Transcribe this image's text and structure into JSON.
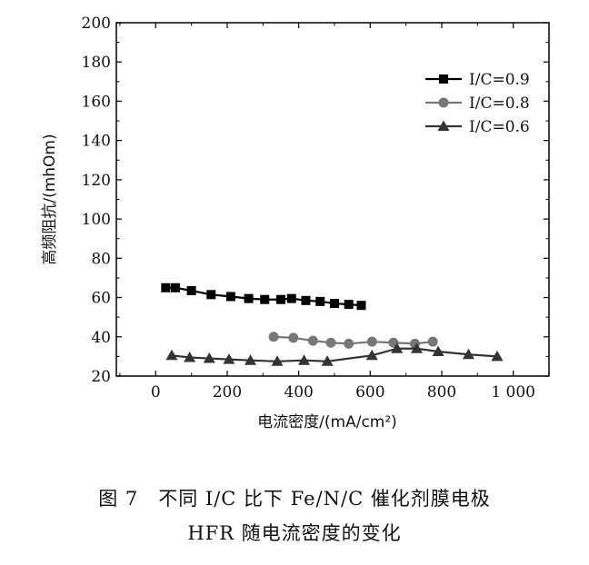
{
  "chart_data": {
    "type": "line",
    "xlabel": "电流密度/(mA/cm²)",
    "ylabel": "高频阻抗/(mhOm)",
    "xlim": [
      -110,
      1100
    ],
    "ylim": [
      20,
      200
    ],
    "xticks": [
      0,
      200,
      400,
      600,
      800,
      1000
    ],
    "xtick_labels": [
      "0",
      "200",
      "400",
      "600",
      "800",
      "1 000"
    ],
    "yticks": [
      20,
      40,
      60,
      80,
      100,
      120,
      140,
      160,
      180,
      200
    ],
    "ytick_labels": [
      "20",
      "40",
      "60",
      "80",
      "100",
      "120",
      "140",
      "160",
      "180",
      "200"
    ],
    "legend_position": "top-right",
    "grid": false,
    "series": [
      {
        "name": "I/C=0.9",
        "marker": "square",
        "color": "#000000",
        "x": [
          28,
          55,
          100,
          155,
          210,
          260,
          305,
          350,
          380,
          420,
          460,
          500,
          540,
          575
        ],
        "y": [
          65,
          65,
          63.5,
          61.5,
          60.5,
          59.5,
          59,
          59,
          59.5,
          58.5,
          58,
          57,
          56.5,
          56
        ]
      },
      {
        "name": "I/C=0.8",
        "marker": "circle",
        "color": "#777777",
        "x": [
          330,
          385,
          440,
          490,
          540,
          605,
          665,
          725,
          775
        ],
        "y": [
          40,
          39.5,
          38,
          37,
          36.5,
          37.5,
          37,
          36.5,
          37.5
        ]
      },
      {
        "name": "I/C=0.6",
        "marker": "triangle",
        "color": "#333333",
        "x": [
          45,
          95,
          150,
          205,
          265,
          340,
          415,
          480,
          605,
          675,
          730,
          790,
          875,
          955
        ],
        "y": [
          30.5,
          29.5,
          29,
          28.5,
          28,
          27.5,
          28,
          27.5,
          30.5,
          34,
          34,
          32.5,
          31,
          30
        ]
      }
    ]
  },
  "caption": {
    "line1": "图 7　不同 I/C 比下 Fe/N/C 催化剂膜电极",
    "line2": "HFR 随电流密度的变化"
  }
}
